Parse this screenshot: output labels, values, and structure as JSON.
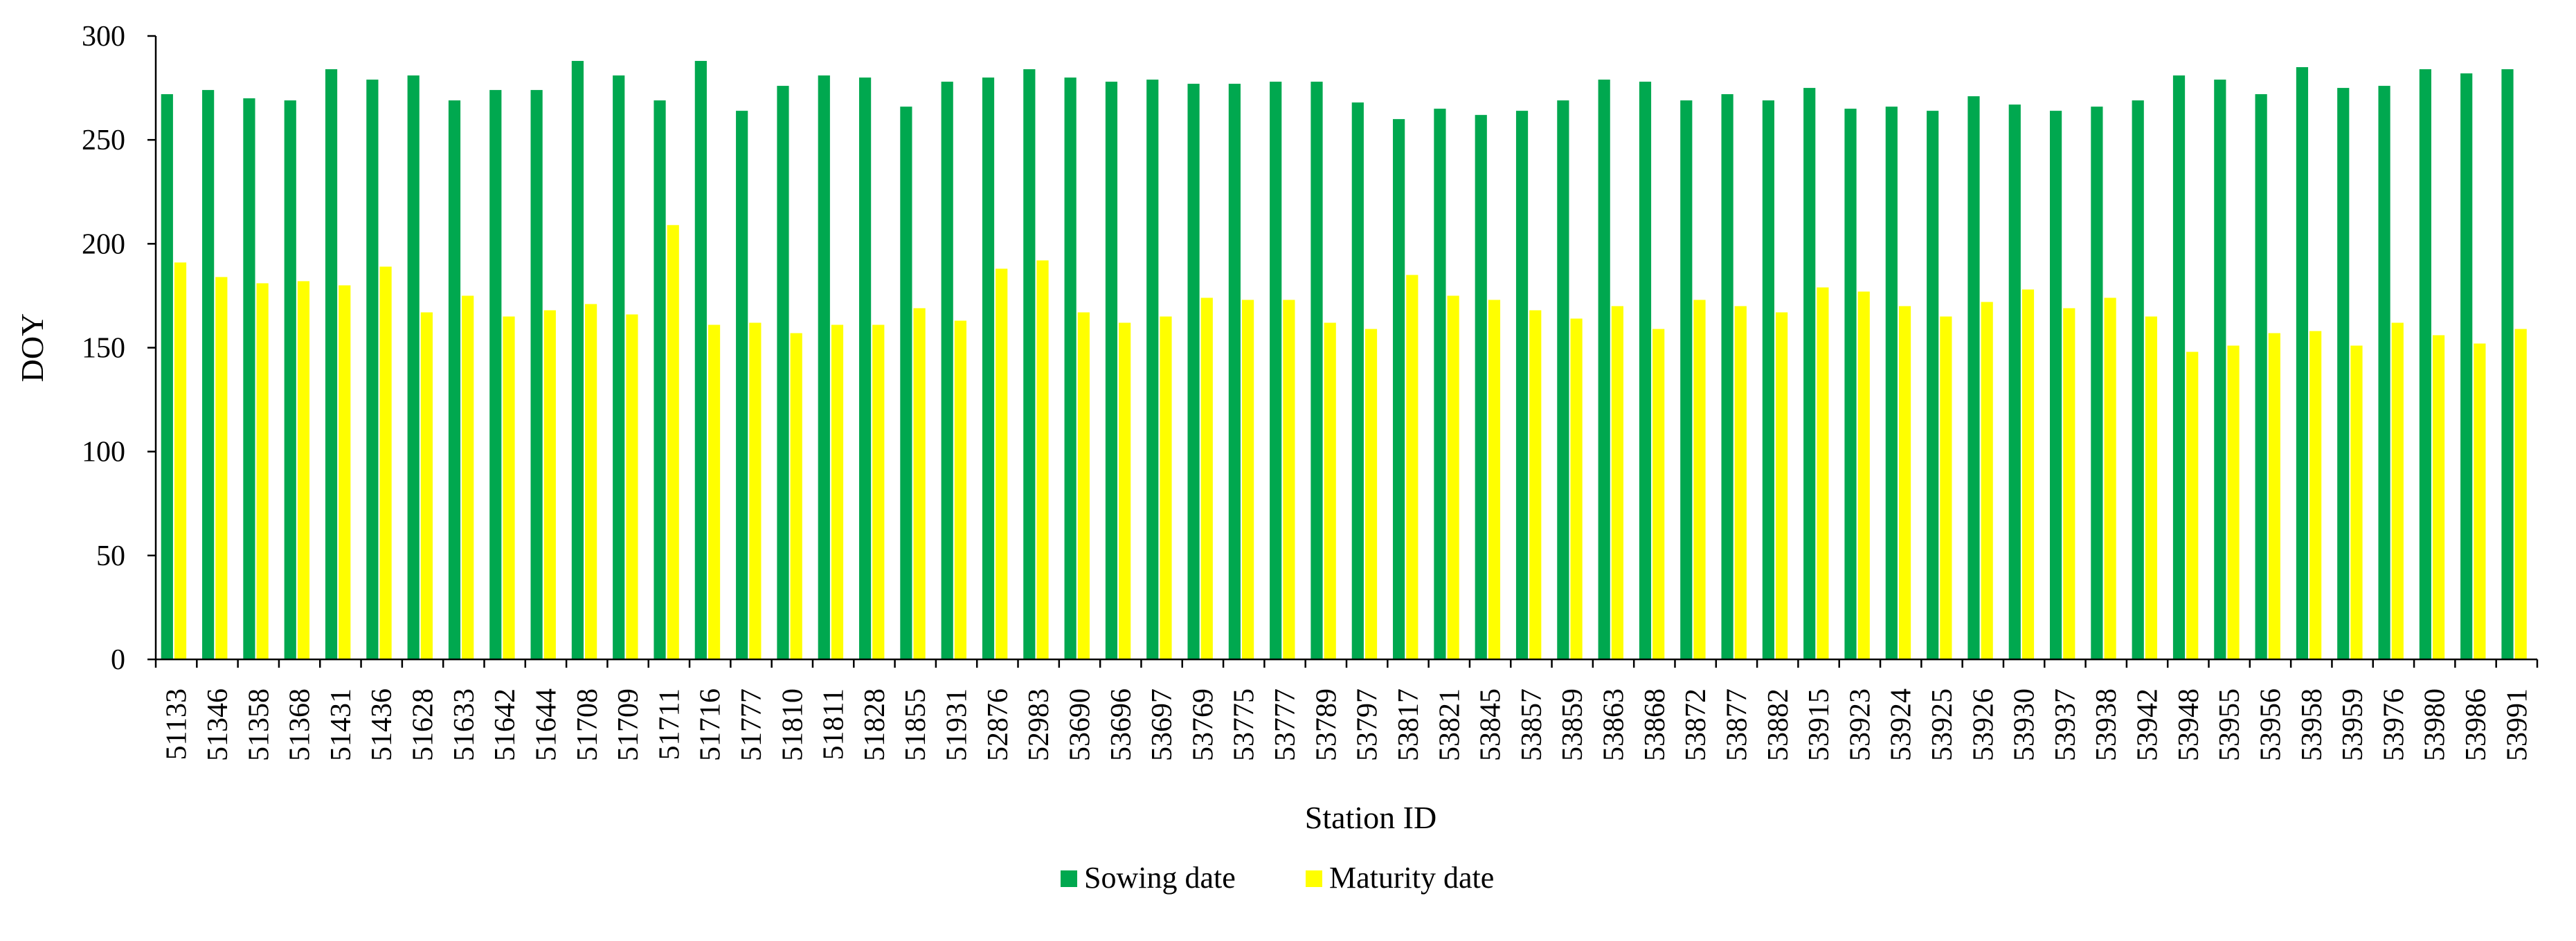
{
  "chart_data": {
    "type": "bar",
    "title": "",
    "xlabel": "Station ID",
    "ylabel": "DOY",
    "ylim": [
      0,
      300
    ],
    "yticks": [
      0,
      50,
      100,
      150,
      200,
      250,
      300
    ],
    "grid": false,
    "legend_position": "bottom-center",
    "categories": [
      "51133",
      "51346",
      "51358",
      "51368",
      "51431",
      "51436",
      "51628",
      "51633",
      "51642",
      "51644",
      "51708",
      "51709",
      "51711",
      "51716",
      "51777",
      "51810",
      "51811",
      "51828",
      "51855",
      "51931",
      "52876",
      "52983",
      "53690",
      "53696",
      "53697",
      "53769",
      "53775",
      "53777",
      "53789",
      "53797",
      "53817",
      "53821",
      "53845",
      "53857",
      "53859",
      "53863",
      "53868",
      "53872",
      "53877",
      "53882",
      "53915",
      "53923",
      "53924",
      "53925",
      "53926",
      "53930",
      "53937",
      "53938",
      "53942",
      "53948",
      "53955",
      "53956",
      "53958",
      "53959",
      "53976",
      "53980",
      "53986",
      "53991"
    ],
    "series": [
      {
        "name": "Sowing date",
        "color": "#00a84f",
        "values": [
          272,
          274,
          270,
          269,
          284,
          279,
          281,
          269,
          274,
          274,
          288,
          281,
          269,
          288,
          264,
          276,
          281,
          280,
          266,
          278,
          280,
          284,
          280,
          278,
          279,
          277,
          277,
          278,
          278,
          268,
          260,
          265,
          262,
          264,
          269,
          279,
          278,
          269,
          272,
          269,
          275,
          265,
          266,
          264,
          271,
          267,
          264,
          266,
          269,
          281,
          279,
          272,
          285,
          275,
          276,
          284,
          282,
          284
        ]
      },
      {
        "name": "Maturity date",
        "color": "#ffff00",
        "values": [
          191,
          184,
          181,
          182,
          180,
          189,
          167,
          175,
          165,
          168,
          171,
          166,
          209,
          161,
          162,
          157,
          161,
          161,
          169,
          163,
          188,
          192,
          167,
          162,
          165,
          174,
          173,
          173,
          162,
          159,
          185,
          175,
          173,
          168,
          164,
          170,
          159,
          173,
          170,
          167,
          179,
          177,
          170,
          165,
          172,
          178,
          169,
          174,
          165,
          148,
          151,
          157,
          158,
          151,
          162,
          156,
          152,
          159
        ]
      }
    ]
  }
}
